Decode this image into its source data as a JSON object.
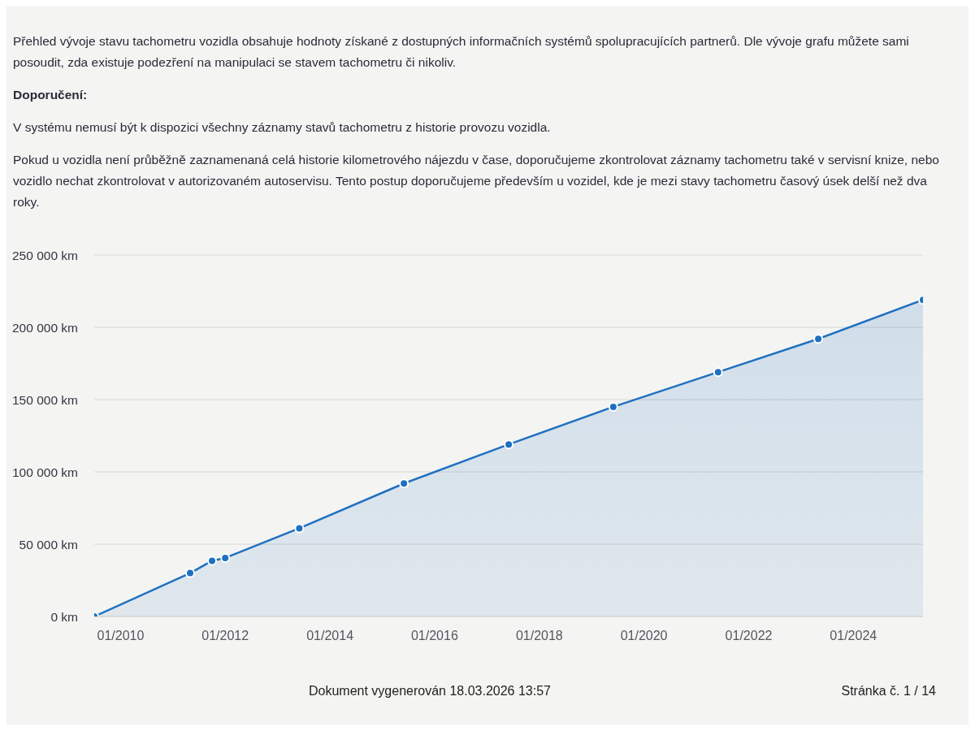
{
  "chart_data": {
    "type": "area",
    "subtitle": "Přehled vývoje stavu tachometru vozidla obsahuje hodnoty získané z dostupných informačních systémů spolupracujících partnerů. Dle vývoje grafu můžete sami posoudit, zda existuje podezření na manipulaci se stavem tachometru či nikoliv.",
    "annotations": [
      "Doporučení:",
      "V systému nemusí být k dispozici všechny záznamy stavů tachometru z historie provozu vozidla.",
      "Pokud u vozidla není průběžně zaznamenaná celá historie kilometrového nájezdu v čase, doporučujeme zkontrolovat záznamy tachometru také v servisní knize, nebo vozidlo nechat zkontrolovat v autorizovaném autoservisu. Tento postup doporučujeme především u vozidel, kde je mezi stavy tachometru časový úsek delší než dva roky.",
      "Dokument vygenerován 18.03.2026 13:57",
      "Stránka č. 1 / 14"
    ],
    "x": [
      "2009-07",
      "2011-05",
      "2011-10",
      "2012-01",
      "2013-06",
      "2015-06",
      "2017-06",
      "2019-06",
      "2021-06",
      "2023-05",
      "2025-05"
    ],
    "values": [
      0,
      30000,
      38500,
      40500,
      61000,
      92000,
      119000,
      145000,
      169000,
      192000,
      219000
    ],
    "color": "#1f70c1",
    "xlim": [
      "2009-07",
      "2025-05"
    ],
    "xticks": [
      {
        "value": "2010-01",
        "label": "01/2010"
      },
      {
        "value": "2012-01",
        "label": "01/2012"
      },
      {
        "value": "2014-01",
        "label": "01/2014"
      },
      {
        "value": "2016-01",
        "label": "01/2016"
      },
      {
        "value": "2018-01",
        "label": "01/2018"
      },
      {
        "value": "2020-01",
        "label": "01/2020"
      },
      {
        "value": "2022-01",
        "label": "01/2022"
      },
      {
        "value": "2024-01",
        "label": "01/2024"
      }
    ],
    "ylim": [
      0,
      250000
    ],
    "yticks": [
      {
        "value": 0,
        "label": "0 km"
      },
      {
        "value": 50000,
        "label": "50 000 km"
      },
      {
        "value": 100000,
        "label": "100 000 km"
      },
      {
        "value": 150000,
        "label": "150 000 km"
      },
      {
        "value": 200000,
        "label": "200 000 km"
      },
      {
        "value": 250000,
        "label": "250 000 km"
      }
    ],
    "grid": "y",
    "marker": "circle",
    "line_style": "solid"
  }
}
